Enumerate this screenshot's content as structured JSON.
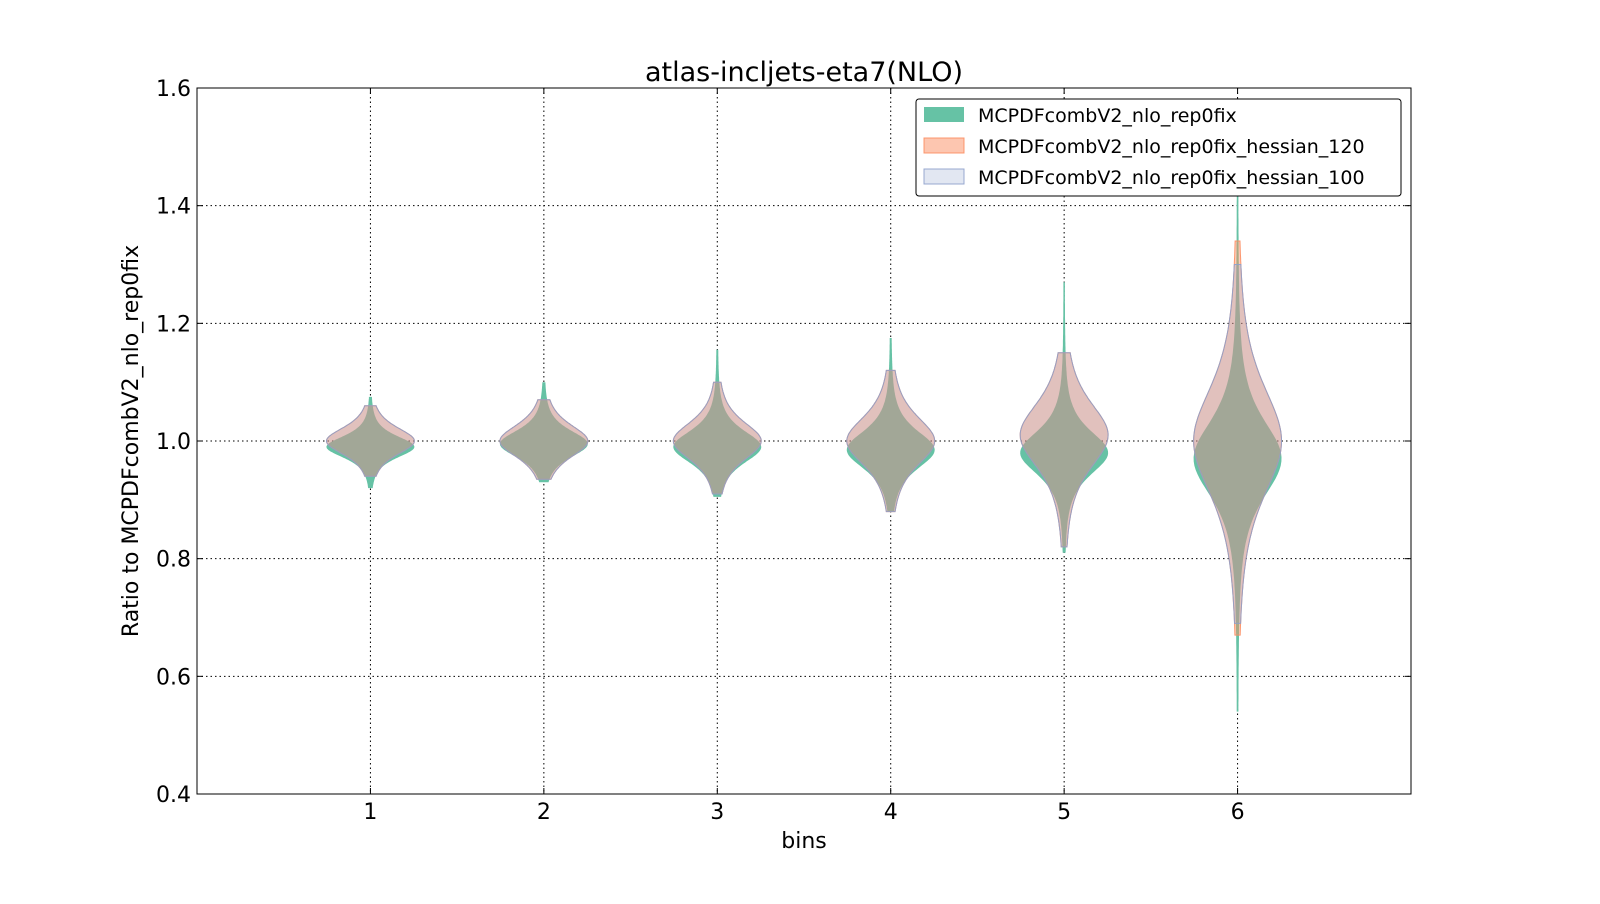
{
  "chart_data": {
    "type": "violin",
    "title": "atlas-incljets-eta7(NLO)",
    "xlabel": "bins",
    "ylabel": "Ratio to MCPDFcombV2_nlo_rep0fix",
    "xlim": [
      0,
      7
    ],
    "ylim": [
      0.4,
      1.6
    ],
    "xticks": [
      "1",
      "2",
      "3",
      "4",
      "5",
      "6"
    ],
    "yticks": [
      "0.4",
      "0.6",
      "0.8",
      "1.0",
      "1.2",
      "1.4",
      "1.6"
    ],
    "grid": true,
    "legend_position": "top-right",
    "categories": [
      1,
      2,
      3,
      4,
      5,
      6
    ],
    "series": [
      {
        "name": "MCPDFcombV2_nlo_rep0fix",
        "color": "#66c2a5",
        "center": [
          0.99,
          0.995,
          0.99,
          0.985,
          0.98,
          0.97
        ],
        "spread": [
          0.02,
          0.025,
          0.03,
          0.035,
          0.04,
          0.07
        ],
        "min": [
          0.92,
          0.93,
          0.905,
          0.88,
          0.81,
          0.54
        ],
        "max": [
          1.075,
          1.1,
          1.155,
          1.175,
          1.27,
          1.42
        ]
      },
      {
        "name": "MCPDFcombV2_nlo_rep0fix_hessian_120",
        "color": "#fc8d62",
        "center": [
          1.0,
          1.0,
          1.0,
          1.0,
          1.01,
          1.0
        ],
        "spread": [
          0.025,
          0.03,
          0.035,
          0.045,
          0.06,
          0.1
        ],
        "min": [
          0.94,
          0.935,
          0.91,
          0.88,
          0.82,
          0.67
        ],
        "max": [
          1.06,
          1.07,
          1.1,
          1.12,
          1.15,
          1.34
        ]
      },
      {
        "name": "MCPDFcombV2_nlo_rep0fix_hessian_100",
        "color": "#8da0cb",
        "center": [
          1.0,
          1.0,
          1.0,
          1.0,
          1.01,
          1.0
        ],
        "spread": [
          0.025,
          0.03,
          0.035,
          0.045,
          0.06,
          0.1
        ],
        "min": [
          0.94,
          0.935,
          0.91,
          0.88,
          0.82,
          0.69
        ],
        "max": [
          1.06,
          1.07,
          1.1,
          1.12,
          1.15,
          1.3
        ]
      }
    ]
  }
}
